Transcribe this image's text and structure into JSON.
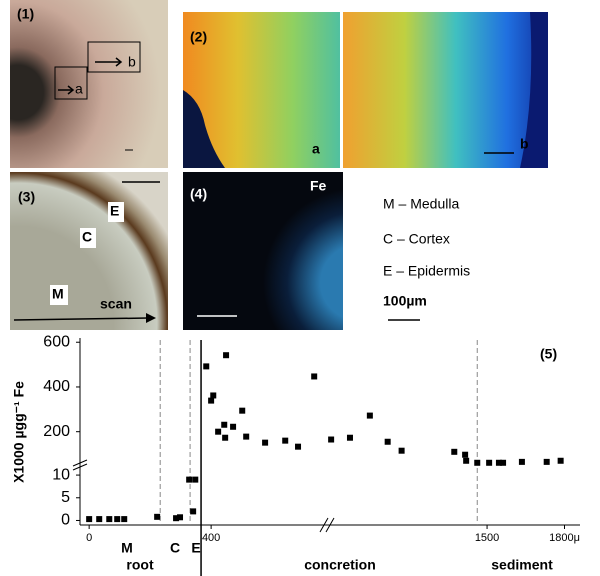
{
  "panels": {
    "p1": {
      "label": "(1)",
      "box_a": "a",
      "box_b": "b"
    },
    "p2": {
      "label": "(2)",
      "left": "a",
      "right": "b"
    },
    "p3": {
      "label": "(3)",
      "epidermis": "E",
      "cortex": "C",
      "medulla": "M",
      "scan": "scan"
    },
    "p4": {
      "label": "(4)",
      "element": "Fe"
    }
  },
  "legend": {
    "items": [
      "M – Medulla",
      "C – Cortex",
      "E – Epidermis"
    ],
    "scale": "100µm"
  },
  "chart_data": {
    "type": "scatter",
    "title": "(5)",
    "y_label": "X1000 µgg⁻¹ Fe",
    "color": "#000000",
    "x": [
      0,
      33,
      66,
      92,
      115,
      223,
      285,
      298,
      328,
      348,
      341,
      384,
      400,
      407,
      423,
      443,
      446,
      449,
      472,
      502,
      515,
      577,
      643,
      685,
      738,
      896,
      969,
      1046,
      1115,
      1169,
      1373,
      1415,
      1419,
      1462,
      1508,
      1546,
      1562,
      1635,
      1731,
      1785
    ],
    "values": [
      0.3,
      0.3,
      0.3,
      0.3,
      0.3,
      0.8,
      0.5,
      0.7,
      9,
      9,
      2,
      492,
      339,
      362,
      200,
      231,
      173,
      542,
      222,
      294,
      178,
      151,
      160,
      133,
      447,
      165,
      173,
      272,
      155,
      115,
      110,
      97,
      70,
      61,
      61,
      61,
      61,
      65,
      65,
      70
    ],
    "xlim": [
      -30,
      1860
    ],
    "xbreak": [
      780,
      880
    ],
    "xticks": [
      0,
      400,
      1500,
      {
        "value": 1800,
        "label": "1800μ"
      }
    ],
    "ylim": [
      -1,
      610
    ],
    "ybreak": [
      12,
      60
    ],
    "yticks": [
      0,
      5,
      10,
      200,
      400,
      600
    ],
    "boundaries": [
      {
        "x": 233,
        "style": "dashed"
      },
      {
        "x": 331,
        "style": "dashed"
      },
      {
        "x": 367,
        "style": "solid"
      },
      {
        "x": 1462,
        "style": "dashed"
      }
    ],
    "annotations": [
      "M",
      "C",
      "E",
      "root",
      "concretion",
      "sediment"
    ]
  }
}
